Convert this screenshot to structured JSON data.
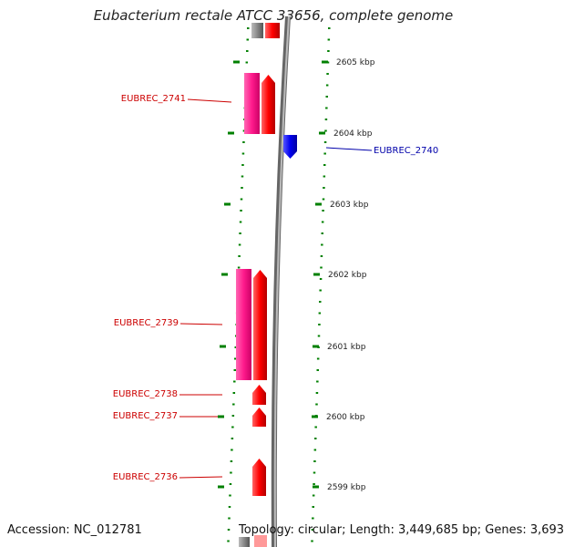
{
  "title": "Eubacterium rectale ATCC 33656, complete genome",
  "footer": {
    "accession": "Accession: NC_012781",
    "topology": "Topology: circular; Length: 3,449,685 bp; Genes: 3,693"
  },
  "colors": {
    "forward_gene": "#ff0000",
    "forward_cds": "#ff1a8c",
    "reverse_gene": "#0000ee",
    "forward_label": "#cc0000",
    "reverse_label": "#0000aa",
    "ticks": "#008000",
    "backbone": "#808080"
  },
  "ticks": [
    {
      "label": "2605 kbp"
    },
    {
      "label": "2604 kbp"
    },
    {
      "label": "2603 kbp"
    },
    {
      "label": "2602 kbp"
    },
    {
      "label": "2601 kbp"
    },
    {
      "label": "2600 kbp"
    },
    {
      "label": "2599 kbp"
    }
  ],
  "genes": [
    {
      "label": "EUBREC_2741",
      "strand": "forward"
    },
    {
      "label": "EUBREC_2740",
      "strand": "reverse"
    },
    {
      "label": "EUBREC_2739",
      "strand": "forward"
    },
    {
      "label": "EUBREC_2738",
      "strand": "forward"
    },
    {
      "label": "EUBREC_2737",
      "strand": "forward"
    },
    {
      "label": "EUBREC_2736",
      "strand": "forward"
    }
  ]
}
